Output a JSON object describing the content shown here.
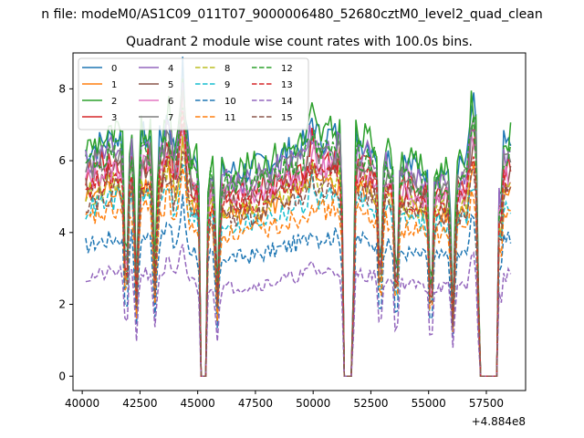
{
  "figure": {
    "suptitle": "n file: modeM0/AS1C09_011T07_9000006480_52680cztM0_level2_quad_clean",
    "title": "Quadrant 2 module wise count rates with 100.0s bins."
  },
  "chart_data": {
    "type": "line",
    "title": "Quadrant 2 module wise count rates with 100.0s bins.",
    "xlabel": "",
    "ylabel": "",
    "x_offset_label": "+4.884e8",
    "xlim": [
      39600,
      59200
    ],
    "ylim": [
      -0.4,
      9.0
    ],
    "x_ticks": [
      40000,
      42500,
      45000,
      47500,
      50000,
      52500,
      55000,
      57500
    ],
    "x_tick_labels": [
      "40000",
      "42500",
      "45000",
      "47500",
      "50000",
      "52500",
      "55000",
      "57500"
    ],
    "y_ticks": [
      0,
      2,
      4,
      6,
      8
    ],
    "y_tick_labels": [
      "0",
      "2",
      "4",
      "6",
      "8"
    ],
    "grid": false,
    "legend_position": "upper-left",
    "legend_columns": 4,
    "x_start": 40150,
    "x_end": 58550,
    "bin_seconds": 100,
    "gaps": [
      [
        45150,
        45350
      ],
      [
        51350,
        51700
      ],
      [
        57200,
        57950
      ]
    ],
    "dips": [
      [
        41900,
        0.3
      ],
      [
        42350,
        0.35
      ],
      [
        43150,
        0.45
      ],
      [
        45850,
        0.4
      ],
      [
        52900,
        0.35
      ],
      [
        53600,
        0.3
      ],
      [
        55100,
        0.25
      ],
      [
        56050,
        0.3
      ],
      [
        58050,
        0.4
      ]
    ],
    "peaks": [
      [
        44350,
        1.35
      ],
      [
        56900,
        1.3
      ],
      [
        43700,
        1.15
      ],
      [
        49950,
        1.1
      ]
    ],
    "series": [
      {
        "name": "0",
        "level": 6.2,
        "color": "#1f77b4",
        "dash": "solid"
      },
      {
        "name": "1",
        "level": 4.9,
        "color": "#ff7f0e",
        "dash": "solid"
      },
      {
        "name": "2",
        "level": 6.3,
        "color": "#2ca02c",
        "dash": "solid"
      },
      {
        "name": "3",
        "level": 5.6,
        "color": "#d62728",
        "dash": "solid"
      },
      {
        "name": "4",
        "level": 5.9,
        "color": "#9467bd",
        "dash": "solid"
      },
      {
        "name": "5",
        "level": 5.3,
        "color": "#8c564b",
        "dash": "solid"
      },
      {
        "name": "6",
        "level": 5.4,
        "color": "#e377c2",
        "dash": "solid"
      },
      {
        "name": "7",
        "level": 5.7,
        "color": "#7f7f7f",
        "dash": "solid"
      },
      {
        "name": "8",
        "level": 5.0,
        "color": "#bcbd22",
        "dash": "dashed"
      },
      {
        "name": "9",
        "level": 4.6,
        "color": "#17becf",
        "dash": "dashed"
      },
      {
        "name": "10",
        "level": 3.6,
        "color": "#1f77b4",
        "dash": "dashed"
      },
      {
        "name": "11",
        "level": 4.3,
        "color": "#ff7f0e",
        "dash": "dashed"
      },
      {
        "name": "12",
        "level": 5.8,
        "color": "#2ca02c",
        "dash": "dashed"
      },
      {
        "name": "13",
        "level": 5.2,
        "color": "#d62728",
        "dash": "dashed"
      },
      {
        "name": "14",
        "level": 2.7,
        "color": "#9467bd",
        "dash": "dashed"
      },
      {
        "name": "15",
        "level": 4.8,
        "color": "#8c564b",
        "dash": "dashed"
      }
    ]
  }
}
